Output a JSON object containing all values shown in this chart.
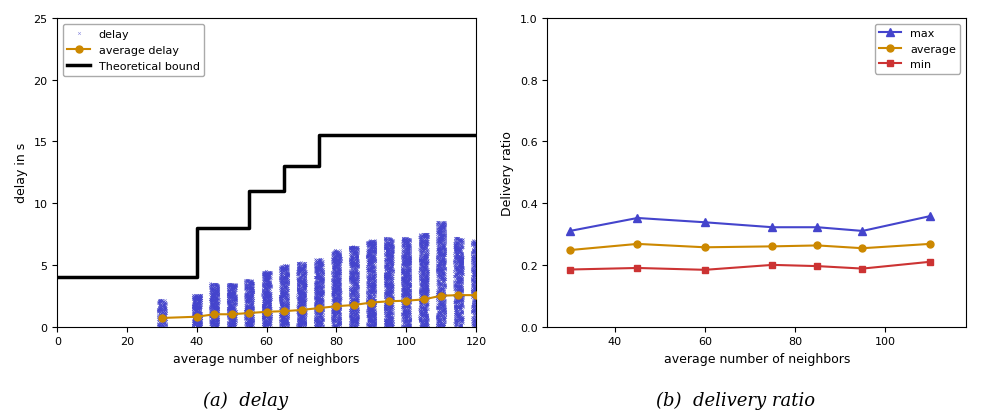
{
  "left": {
    "xlabel": "average number of neighbors",
    "ylabel": "delay in s",
    "xlim": [
      0,
      120
    ],
    "ylim": [
      0,
      25
    ],
    "xticks": [
      0,
      20,
      40,
      60,
      80,
      100,
      120
    ],
    "yticks": [
      0,
      5,
      10,
      15,
      20,
      25
    ],
    "scatter_color": "#4444cc",
    "avg_color": "#cc8800",
    "bound_color": "#000000",
    "scatter_x_centers": [
      30,
      40,
      45,
      50,
      55,
      60,
      65,
      70,
      75,
      80,
      85,
      90,
      95,
      100,
      105,
      110,
      115,
      120
    ],
    "scatter_max_y": [
      2.2,
      2.6,
      3.5,
      3.5,
      3.8,
      4.5,
      5.0,
      5.2,
      5.5,
      6.2,
      6.5,
      7.0,
      7.2,
      7.2,
      7.5,
      8.5,
      7.2,
      7.0
    ],
    "scatter_counts": [
      200,
      400,
      500,
      500,
      500,
      600,
      600,
      700,
      700,
      800,
      800,
      900,
      900,
      900,
      900,
      900,
      800,
      700
    ],
    "avg_x": [
      30,
      40,
      45,
      50,
      55,
      60,
      65,
      70,
      75,
      80,
      85,
      90,
      95,
      100,
      105,
      110,
      115,
      120
    ],
    "avg_y": [
      0.7,
      0.8,
      1.0,
      1.0,
      1.1,
      1.2,
      1.25,
      1.35,
      1.5,
      1.65,
      1.75,
      1.95,
      2.05,
      2.1,
      2.2,
      2.5,
      2.55,
      2.55
    ],
    "bound_x": [
      0,
      40,
      40,
      55,
      55,
      65,
      65,
      75,
      75,
      90,
      90,
      105,
      105,
      120
    ],
    "bound_y": [
      4.0,
      4.0,
      8.0,
      8.0,
      11.0,
      11.0,
      13.0,
      13.0,
      15.5,
      15.5,
      15.5,
      15.5,
      15.5,
      15.5
    ],
    "caption": "(a)  delay"
  },
  "right": {
    "xlabel": "average number of neighbors",
    "ylabel": "Delivery ratio",
    "xlim": [
      25,
      118
    ],
    "ylim": [
      0.0,
      1.0
    ],
    "xticks": [
      40,
      60,
      80,
      100
    ],
    "yticks": [
      0.0,
      0.2,
      0.4,
      0.6,
      0.8,
      1.0
    ],
    "max_color": "#4444cc",
    "avg_color": "#cc8800",
    "min_color": "#cc3333",
    "x": [
      30,
      45,
      60,
      75,
      85,
      95,
      110
    ],
    "max_y": [
      0.31,
      0.352,
      0.338,
      0.322,
      0.322,
      0.31,
      0.358
    ],
    "avg_y": [
      0.248,
      0.268,
      0.257,
      0.26,
      0.263,
      0.254,
      0.268
    ],
    "min_y": [
      0.185,
      0.19,
      0.184,
      0.2,
      0.196,
      0.188,
      0.21
    ],
    "caption": "(b)  delivery ratio"
  },
  "bg_color": "#ffffff"
}
